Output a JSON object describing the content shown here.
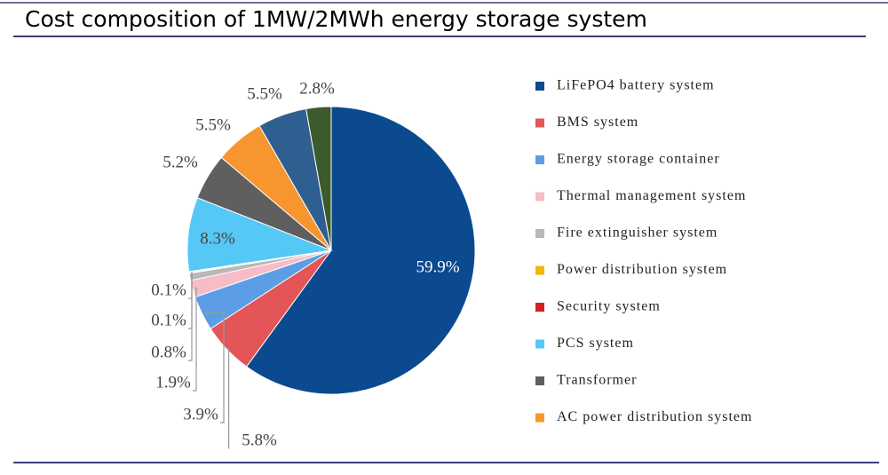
{
  "chart_data": {
    "type": "pie",
    "title": "Cost composition of 1MW/2MWh energy storage system",
    "categories": [
      "LiFePO4 battery system",
      "BMS system",
      "Energy storage container",
      "Thermal management system",
      "Fire extinguisher system",
      "Power distribution system",
      "Security system",
      "PCS system",
      "Transformer",
      "AC power distribution system",
      null,
      null
    ],
    "values": [
      59.9,
      5.8,
      3.9,
      1.9,
      0.8,
      0.1,
      0.1,
      8.3,
      5.2,
      5.5,
      5.5,
      2.8
    ],
    "value_labels": [
      "59.9%",
      "5.8%",
      "3.9%",
      "1.9%",
      "0.8%",
      "0.1%",
      "0.1%",
      "8.3%",
      "5.2%",
      "5.5%",
      "5.5%",
      "2.8%"
    ],
    "colors": [
      "#0b4a8f",
      "#e35557",
      "#5b9ee6",
      "#f7bcc6",
      "#b8b8b8",
      "#f2b705",
      "#d42020",
      "#56c8f5",
      "#5f5f5f",
      "#f7962f",
      "#2f5f91",
      "#3d5a2c"
    ]
  }
}
